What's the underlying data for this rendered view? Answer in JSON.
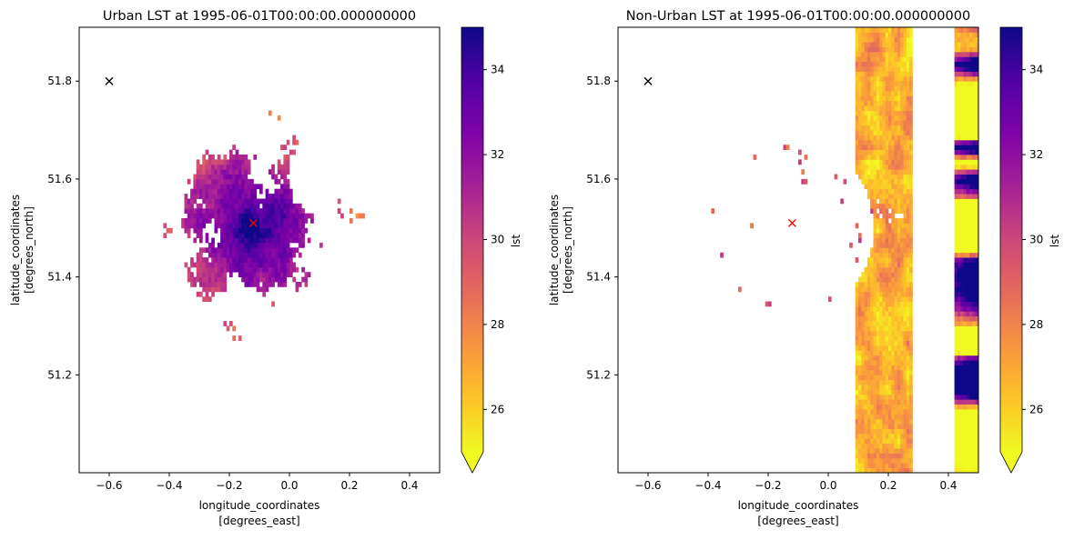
{
  "chart_data": [
    {
      "type": "heatmap",
      "title": "Urban LST at 1995-06-01T00:00:00.000000000",
      "xlabel": [
        "longitude_coordinates",
        "[degrees_east]"
      ],
      "ylabel": [
        "latitude_coordinates",
        "[degrees_north]"
      ],
      "xlim": [
        -0.7,
        0.5
      ],
      "ylim": [
        51.0,
        51.91
      ],
      "xticks": [
        -0.6,
        -0.4,
        -0.2,
        0.0,
        0.2,
        0.4
      ],
      "xtick_labels": [
        "−0.6",
        "−0.4",
        "−0.2",
        "0.0",
        "0.2",
        "0.4"
      ],
      "yticks": [
        51.2,
        51.4,
        51.6,
        51.8
      ],
      "ytick_labels": [
        "51.2",
        "51.4",
        "51.6",
        "51.8"
      ],
      "colorbar": {
        "label": "lst",
        "cmap": "plasma",
        "range": [
          25,
          35
        ],
        "extend": "min",
        "ticks": [
          26,
          28,
          30,
          32,
          34
        ],
        "tick_labels": [
          "26",
          "28",
          "30",
          "32",
          "34"
        ]
      },
      "markers": [
        {
          "lon": -0.6,
          "lat": 51.8,
          "symbol": "x",
          "color": "#000000"
        },
        {
          "lon": -0.12,
          "lat": 51.51,
          "symbol": "x",
          "color": "#ff0000"
        }
      ],
      "pattern": "urban"
    },
    {
      "type": "heatmap",
      "title": "Non-Urban LST at 1995-06-01T00:00:00.000000000",
      "xlabel": [
        "longitude_coordinates",
        "[degrees_east]"
      ],
      "ylabel": [
        "latitude_coordinates",
        "[degrees_north]"
      ],
      "xlim": [
        -0.7,
        0.5
      ],
      "ylim": [
        51.0,
        51.91
      ],
      "xticks": [
        -0.6,
        -0.4,
        -0.2,
        0.0,
        0.2,
        0.4
      ],
      "xtick_labels": [
        "−0.6",
        "−0.4",
        "−0.2",
        "0.0",
        "0.2",
        "0.4"
      ],
      "yticks": [
        51.2,
        51.4,
        51.6,
        51.8
      ],
      "ytick_labels": [
        "51.2",
        "51.4",
        "51.6",
        "51.8"
      ],
      "colorbar": {
        "label": "lst",
        "cmap": "plasma",
        "range": [
          25,
          35
        ],
        "extend": "min",
        "ticks": [
          26,
          28,
          30,
          32,
          34
        ],
        "tick_labels": [
          "26",
          "28",
          "30",
          "32",
          "34"
        ]
      },
      "markers": [
        {
          "lon": -0.6,
          "lat": 51.8,
          "symbol": "x",
          "color": "#000000"
        },
        {
          "lon": -0.12,
          "lat": 51.51,
          "symbol": "x",
          "color": "#ff0000"
        }
      ],
      "pattern": "non-urban"
    }
  ]
}
